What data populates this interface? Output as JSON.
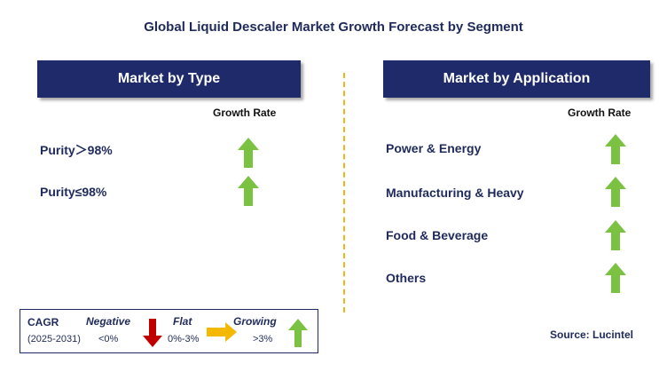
{
  "title": "Global Liquid Descaler Market Growth Forecast by Segment",
  "type_panel": {
    "header": "Market by Type",
    "growth_rate_label": "Growth Rate",
    "items": [
      {
        "label": "Purity＞98%",
        "trend": "growing"
      },
      {
        "label": "Purity≤98%",
        "trend": "growing"
      }
    ]
  },
  "application_panel": {
    "header": "Market by Application",
    "growth_rate_label": "Growth Rate",
    "items": [
      {
        "label": "Power & Energy",
        "trend": "growing"
      },
      {
        "label": "Manufacturing & Heavy",
        "trend": "growing"
      },
      {
        "label": "Food & Beverage",
        "trend": "growing"
      },
      {
        "label": "Others",
        "trend": "growing"
      }
    ]
  },
  "legend": {
    "cagr_label": "CAGR",
    "period": "(2025-2031)",
    "negative_label": "Negative",
    "negative_value": "<0%",
    "flat_label": "Flat",
    "flat_value": "0%-3%",
    "growing_label": "Growing",
    "growing_value": ">3%"
  },
  "source": "Source: Lucintel",
  "colors": {
    "header_bg": "#1f2a6b",
    "text": "#1f2a5c",
    "divider": "#f2b21b",
    "growing": "#7cc242",
    "negative": "#c00000",
    "flat": "#f5b800"
  }
}
